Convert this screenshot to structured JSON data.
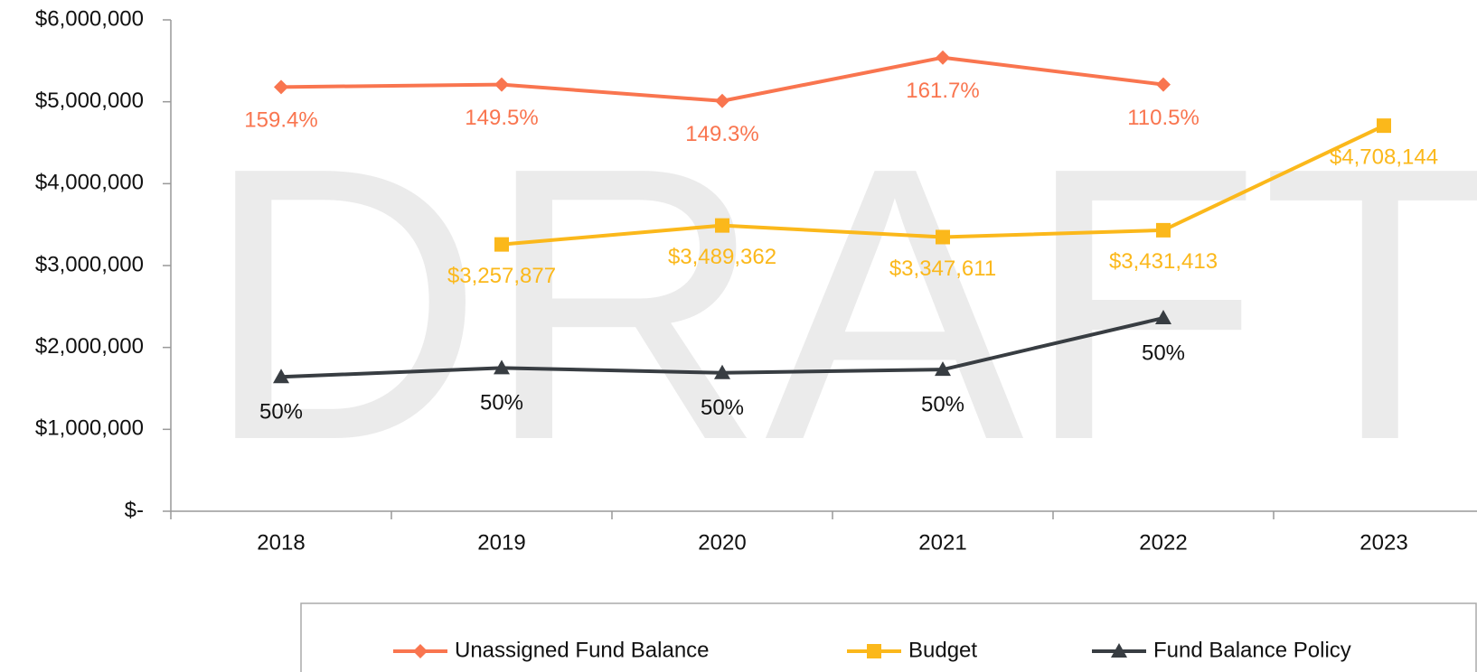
{
  "chart_data": {
    "type": "line",
    "watermark": "DRAFT",
    "categories": [
      "2018",
      "2019",
      "2020",
      "2021",
      "2022",
      "2023"
    ],
    "ylim": [
      0,
      6000000
    ],
    "yticks": [
      {
        "value": 0,
        "label": "$-"
      },
      {
        "value": 1000000,
        "label": "$1,000,000"
      },
      {
        "value": 2000000,
        "label": "$2,000,000"
      },
      {
        "value": 3000000,
        "label": "$3,000,000"
      },
      {
        "value": 4000000,
        "label": "$4,000,000"
      },
      {
        "value": 5000000,
        "label": "$5,000,000"
      },
      {
        "value": 6000000,
        "label": "$6,000,000"
      }
    ],
    "grid": false,
    "legend": "bottom",
    "series": [
      {
        "name": "Unassigned Fund Balance",
        "color": "#f9754f",
        "marker": "diamond",
        "values": [
          5180000,
          5210000,
          5010000,
          5540000,
          5210000,
          null
        ],
        "annotations": [
          "159.4%",
          "149.5%",
          "149.3%",
          "161.7%",
          "110.5%",
          null
        ]
      },
      {
        "name": "Budget",
        "color": "#fbb81b",
        "marker": "square",
        "values": [
          null,
          3257877,
          3489362,
          3347611,
          3431413,
          4708144
        ],
        "value_labels": [
          null,
          "$3,257,877",
          "$3,489,362",
          "$3,347,611",
          "$3,431,413",
          "$4,708,144"
        ]
      },
      {
        "name": "Fund Balance Policy",
        "color": "#383d42",
        "marker": "triangle",
        "values": [
          1640000,
          1750000,
          1690000,
          1730000,
          2360000,
          null
        ],
        "annotations": [
          "50%",
          "50%",
          "50%",
          "50%",
          "50%",
          null
        ]
      }
    ]
  }
}
